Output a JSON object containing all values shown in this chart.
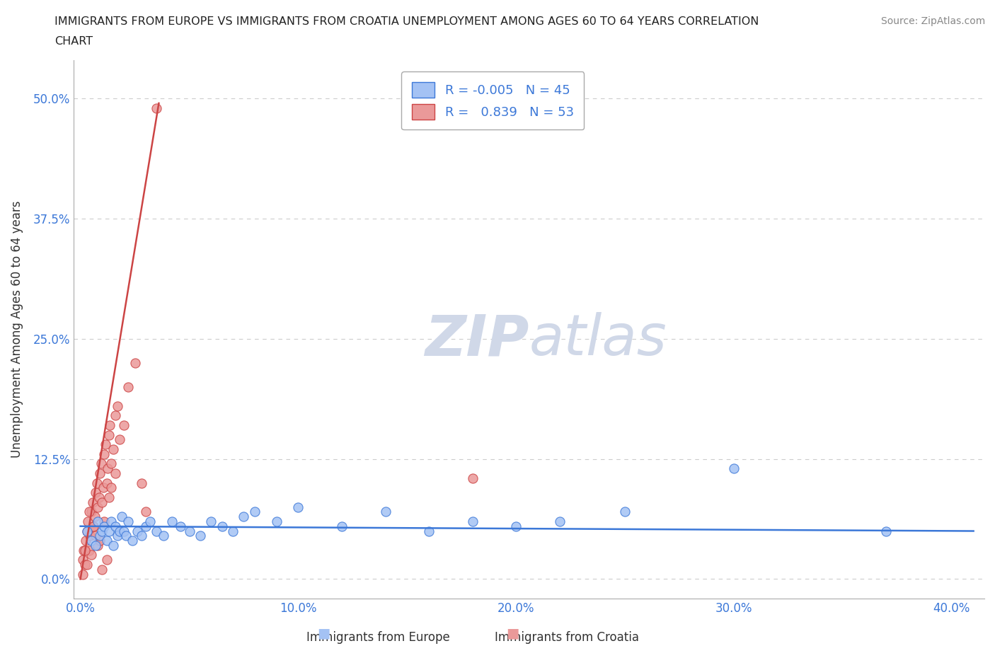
{
  "title_line1": "IMMIGRANTS FROM EUROPE VS IMMIGRANTS FROM CROATIA UNEMPLOYMENT AMONG AGES 60 TO 64 YEARS CORRELATION",
  "title_line2": "CHART",
  "source_text": "Source: ZipAtlas.com",
  "xlabel_ticks": [
    "0.0%",
    "10.0%",
    "20.0%",
    "30.0%",
    "40.0%"
  ],
  "xlabel_tick_vals": [
    0.0,
    10.0,
    20.0,
    30.0,
    40.0
  ],
  "ylabel_ticks": [
    "0.0%",
    "12.5%",
    "25.0%",
    "37.5%",
    "50.0%"
  ],
  "ylabel_tick_vals": [
    0.0,
    12.5,
    25.0,
    37.5,
    50.0
  ],
  "xlim": [
    -0.3,
    41.5
  ],
  "ylim": [
    -2.0,
    54
  ],
  "legend_label_europe": "Immigrants from Europe",
  "legend_label_croatia": "Immigrants from Croatia",
  "R_europe": "-0.005",
  "N_europe": "45",
  "R_croatia": "0.839",
  "N_croatia": "53",
  "europe_color": "#a4c2f4",
  "croatia_color": "#ea9999",
  "europe_line_color": "#3c78d8",
  "croatia_line_color": "#cc4444",
  "watermark_color": "#d0d8e8",
  "grid_color": "#cccccc",
  "europe_x": [
    0.3,
    0.5,
    0.7,
    0.8,
    0.9,
    1.0,
    1.1,
    1.2,
    1.3,
    1.4,
    1.5,
    1.6,
    1.7,
    1.8,
    1.9,
    2.0,
    2.1,
    2.2,
    2.4,
    2.6,
    2.8,
    3.0,
    3.2,
    3.5,
    3.8,
    4.2,
    4.6,
    5.0,
    5.5,
    6.0,
    6.5,
    7.0,
    7.5,
    8.0,
    9.0,
    10.0,
    12.0,
    14.0,
    16.0,
    18.0,
    20.0,
    22.0,
    25.0,
    30.0,
    37.0
  ],
  "europe_y": [
    5.0,
    4.0,
    3.5,
    6.0,
    4.5,
    5.0,
    5.5,
    4.0,
    5.0,
    6.0,
    3.5,
    5.5,
    4.5,
    5.0,
    6.5,
    5.0,
    4.5,
    6.0,
    4.0,
    5.0,
    4.5,
    5.5,
    6.0,
    5.0,
    4.5,
    6.0,
    5.5,
    5.0,
    4.5,
    6.0,
    5.5,
    5.0,
    6.5,
    7.0,
    6.0,
    7.5,
    5.5,
    7.0,
    5.0,
    6.0,
    5.5,
    6.0,
    7.0,
    11.5,
    5.0
  ],
  "croatia_x": [
    0.1,
    0.15,
    0.2,
    0.25,
    0.3,
    0.35,
    0.4,
    0.45,
    0.5,
    0.55,
    0.6,
    0.65,
    0.7,
    0.75,
    0.8,
    0.85,
    0.9,
    0.95,
    1.0,
    1.05,
    1.1,
    1.15,
    1.2,
    1.25,
    1.3,
    1.35,
    1.4,
    1.5,
    1.6,
    1.7,
    1.8,
    2.0,
    2.2,
    2.5,
    3.5,
    1.0,
    1.2,
    0.8,
    0.6,
    0.4,
    0.9,
    1.1,
    1.3,
    0.5,
    0.7,
    1.4,
    1.6,
    0.3,
    0.2,
    2.8,
    3.0,
    0.1,
    18.0
  ],
  "croatia_y": [
    2.0,
    3.0,
    1.5,
    4.0,
    5.0,
    6.0,
    3.0,
    4.5,
    7.0,
    8.0,
    5.5,
    6.5,
    9.0,
    10.0,
    7.5,
    8.5,
    11.0,
    12.0,
    8.0,
    9.5,
    13.0,
    14.0,
    10.0,
    11.5,
    15.0,
    16.0,
    12.0,
    13.5,
    17.0,
    18.0,
    14.5,
    16.0,
    20.0,
    22.5,
    49.0,
    1.0,
    2.0,
    3.5,
    5.5,
    7.0,
    4.0,
    6.0,
    8.5,
    2.5,
    4.5,
    9.5,
    11.0,
    1.5,
    3.0,
    10.0,
    7.0,
    0.5,
    10.5
  ],
  "croatia_trend_x": [
    0.0,
    3.6
  ],
  "croatia_trend_y": [
    0.0,
    49.5
  ],
  "europe_trend_x": [
    0.0,
    41.0
  ],
  "europe_trend_y": [
    5.5,
    5.0
  ]
}
